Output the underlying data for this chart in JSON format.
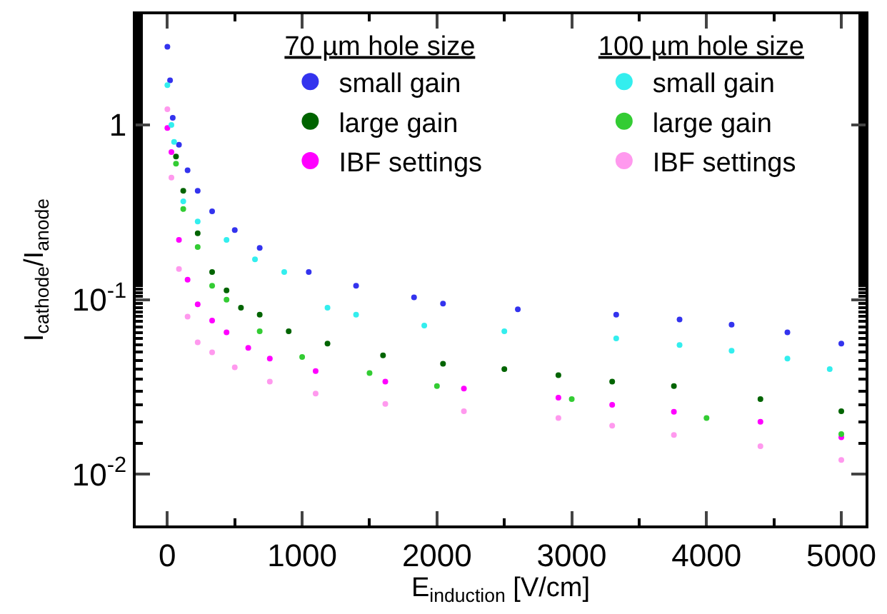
{
  "chart_data": {
    "type": "scatter",
    "xlabel": "E$_{induction}$ [V/cm]",
    "ylabel": "I$_{cathode}$/I$_{anode}$",
    "legend_title": [
      "70 µm hole size",
      "100 µm hole size"
    ],
    "log": "y",
    "marker": "circle",
    "legend": "top right",
    "xlim": [
      -235,
      5180
    ],
    "xticks": [
      0,
      1000,
      2000,
      3000,
      4000,
      5000
    ],
    "ylim": [
      0.0051,
      4.3
    ],
    "yticks": [
      {
        "value": 0.01,
        "label": "10$^{-2}$"
      },
      {
        "value": 0.1,
        "label": "10$^{-1}$"
      },
      1
    ],
    "series": [
      {
        "name": "small gain",
        "color": "#3333ee",
        "x": [
          0,
          20,
          40,
          86,
          150,
          225,
          332,
          500,
          685,
          1049,
          1400,
          1830,
          2045,
          2600,
          3330,
          3800,
          4186,
          4600,
          5000
        ],
        "values": [
          2.8,
          1.8,
          1.1,
          0.77,
          0.55,
          0.42,
          0.32,
          0.25,
          0.198,
          0.144,
          0.12,
          0.103,
          0.095,
          0.088,
          0.082,
          0.077,
          0.072,
          0.065,
          0.056
        ]
      },
      {
        "name": "large gain",
        "color": "#006400",
        "x": [
          64,
          118,
          225,
          332,
          439,
          546,
          685,
          900,
          1188,
          1600,
          2045,
          2500,
          2901,
          3300,
          3758,
          4400,
          5000
        ],
        "values": [
          0.66,
          0.42,
          0.24,
          0.144,
          0.113,
          0.09,
          0.082,
          0.066,
          0.056,
          0.048,
          0.043,
          0.04,
          0.037,
          0.034,
          0.032,
          0.027,
          0.023
        ]
      },
      {
        "name": "IBF settings",
        "color": "#ff00ff",
        "x": [
          0,
          30,
          86,
          150,
          225,
          332,
          439,
          600,
          760,
          1100,
          1617,
          2200,
          2901,
          3300,
          3758,
          4400,
          5000
        ],
        "values": [
          0.96,
          0.7,
          0.22,
          0.13,
          0.094,
          0.076,
          0.065,
          0.053,
          0.046,
          0.039,
          0.034,
          0.031,
          0.0275,
          0.025,
          0.0228,
          0.02,
          0.0163
        ]
      },
      {
        "name": "small gain",
        "color": "#33eeee",
        "x": [
          0,
          30,
          50,
          118,
          225,
          439,
          650,
          867,
          1188,
          1400,
          1906,
          2500,
          3330,
          3800,
          4186,
          4600,
          4914
        ],
        "values": [
          1.69,
          1.0,
          0.8,
          0.365,
          0.28,
          0.22,
          0.17,
          0.144,
          0.09,
          0.082,
          0.071,
          0.066,
          0.06,
          0.055,
          0.051,
          0.046,
          0.04
        ]
      },
      {
        "name": "large gain",
        "color": "#33cc33",
        "x": [
          64,
          118,
          225,
          332,
          439,
          685,
          1000,
          1500,
          2000,
          3000,
          4000,
          5000
        ],
        "values": [
          0.6,
          0.33,
          0.2,
          0.12,
          0.1,
          0.066,
          0.047,
          0.038,
          0.032,
          0.027,
          0.021,
          0.017
        ]
      },
      {
        "name": "IBF settings",
        "color": "#ff99ee",
        "x": [
          0,
          30,
          86,
          150,
          225,
          332,
          500,
          760,
          1100,
          1617,
          2200,
          2901,
          3300,
          3758,
          4400,
          5000
        ],
        "values": [
          1.23,
          0.5,
          0.15,
          0.08,
          0.057,
          0.05,
          0.041,
          0.034,
          0.029,
          0.0253,
          0.023,
          0.021,
          0.019,
          0.0168,
          0.0145,
          0.0121
        ]
      }
    ]
  }
}
